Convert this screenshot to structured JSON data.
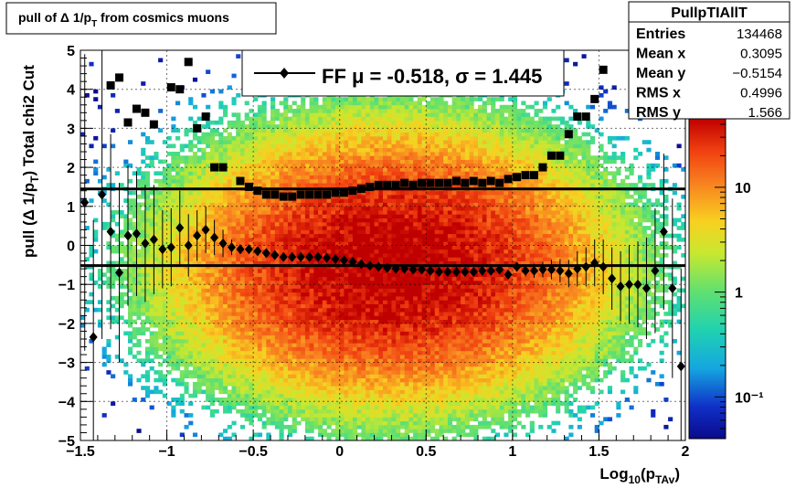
{
  "chart_data": {
    "type": "heatmap",
    "title": "pull of Δ 1/p_T from cosmics muons",
    "title_parts": {
      "main": "pull of Δ 1/p",
      "sub": "T",
      "rest": "  from cosmics muons"
    },
    "xlabel": "Log10(pTAv)",
    "xlabel_parts": {
      "a": "Log",
      "sub1": "10",
      "b": "(p",
      "sub2": "TAv",
      "c": ")"
    },
    "ylabel": "pull (Δ 1/pT)  Total chi2 Cut",
    "ylabel_parts": {
      "a": "pull (Δ 1/p",
      "sub": "T",
      "b": ")  Total chi2 Cut"
    },
    "xlim": [
      -1.5,
      2
    ],
    "ylim": [
      -5,
      5
    ],
    "x_ticks": [
      "−1.5",
      "−1",
      "−0.5",
      "0",
      "0.5",
      "1",
      "1.5",
      "2"
    ],
    "x_tick_values": [
      -1.5,
      -1,
      -0.5,
      0,
      0.5,
      1,
      1.5,
      2
    ],
    "y_ticks": [
      "−5",
      "−4",
      "−3",
      "−2",
      "−1",
      "0",
      "1",
      "2",
      "3",
      "4",
      "5"
    ],
    "y_tick_values": [
      -5,
      -4,
      -3,
      -2,
      -1,
      0,
      1,
      2,
      3,
      4,
      5
    ],
    "grid": true,
    "z_scale": "log",
    "z_ticks": [
      "10",
      "1",
      "10⁻¹"
    ],
    "z_tick_values": [
      10,
      1,
      0.1
    ],
    "z_range": [
      0.04,
      45
    ],
    "density_model": {
      "x_center": 0.3,
      "x_width": 0.55,
      "y_center": -0.5,
      "y_width": 1.5
    },
    "fit_lines": [
      {
        "label": "mean",
        "y": -0.518
      },
      {
        "label": "mean+sigma",
        "y": 1.445
      }
    ],
    "legend": {
      "placement": "top-center",
      "text": "FF μ = -0.518, σ =   1.445"
    },
    "stats": {
      "name": "PullpTIAllT",
      "rows": [
        {
          "key": "Entries",
          "value": "134468"
        },
        {
          "key": "Mean x",
          "value": "0.3095"
        },
        {
          "key": "Mean y",
          "value": "−0.5154"
        },
        {
          "key": "RMS x",
          "value": "0.4996"
        },
        {
          "key": "RMS y",
          "value": "1.566"
        }
      ]
    },
    "series": [
      {
        "marker": "diamond",
        "points": [
          {
            "x": -1.475,
            "y": 1.1,
            "err": 3.8
          },
          {
            "x": -1.425,
            "y": -2.35,
            "err": 3.0
          },
          {
            "x": -1.375,
            "y": 1.3,
            "err": 3.7
          },
          {
            "x": -1.325,
            "y": 0.35,
            "err": 2.5
          },
          {
            "x": -1.275,
            "y": -0.7,
            "err": 2.3
          },
          {
            "x": -1.225,
            "y": 0.25,
            "err": 1.8
          },
          {
            "x": -1.175,
            "y": 0.3,
            "err": 1.6
          },
          {
            "x": -1.125,
            "y": 0.05,
            "err": 1.5
          },
          {
            "x": -1.075,
            "y": 0.15,
            "err": 1.4
          },
          {
            "x": -1.025,
            "y": -0.1,
            "err": 1.0
          },
          {
            "x": -0.975,
            "y": -0.05,
            "err": 1.0
          },
          {
            "x": -0.925,
            "y": 0.45,
            "err": 0.95
          },
          {
            "x": -0.875,
            "y": 0.0,
            "err": 0.8
          },
          {
            "x": -0.825,
            "y": 0.25,
            "err": 0.65
          },
          {
            "x": -0.775,
            "y": 0.4,
            "err": 0.6
          },
          {
            "x": -0.725,
            "y": 0.2,
            "err": 0.45
          },
          {
            "x": -0.675,
            "y": 0.05,
            "err": 0.35
          },
          {
            "x": -0.625,
            "y": -0.05,
            "err": 0.2
          },
          {
            "x": -0.575,
            "y": -0.1,
            "err": 0.12
          },
          {
            "x": -0.525,
            "y": -0.1,
            "err": 0.08
          },
          {
            "x": -0.475,
            "y": -0.15,
            "err": 0.05
          },
          {
            "x": -0.425,
            "y": -0.2,
            "err": 0.04
          },
          {
            "x": -0.375,
            "y": -0.25,
            "err": 0.04
          },
          {
            "x": -0.325,
            "y": -0.3,
            "err": 0.03
          },
          {
            "x": -0.275,
            "y": -0.3,
            "err": 0.03
          },
          {
            "x": -0.225,
            "y": -0.3,
            "err": 0.03
          },
          {
            "x": -0.175,
            "y": -0.3,
            "err": 0.03
          },
          {
            "x": -0.125,
            "y": -0.3,
            "err": 0.03
          },
          {
            "x": -0.075,
            "y": -0.32,
            "err": 0.03
          },
          {
            "x": -0.025,
            "y": -0.35,
            "err": 0.03
          },
          {
            "x": 0.025,
            "y": -0.38,
            "err": 0.03
          },
          {
            "x": 0.075,
            "y": -0.42,
            "err": 0.03
          },
          {
            "x": 0.125,
            "y": -0.48,
            "err": 0.03
          },
          {
            "x": 0.175,
            "y": -0.52,
            "err": 0.03
          },
          {
            "x": 0.225,
            "y": -0.55,
            "err": 0.03
          },
          {
            "x": 0.275,
            "y": -0.58,
            "err": 0.03
          },
          {
            "x": 0.325,
            "y": -0.6,
            "err": 0.03
          },
          {
            "x": 0.375,
            "y": -0.6,
            "err": 0.03
          },
          {
            "x": 0.425,
            "y": -0.62,
            "err": 0.03
          },
          {
            "x": 0.475,
            "y": -0.62,
            "err": 0.03
          },
          {
            "x": 0.525,
            "y": -0.65,
            "err": 0.03
          },
          {
            "x": 0.575,
            "y": -0.68,
            "err": 0.03
          },
          {
            "x": 0.625,
            "y": -0.68,
            "err": 0.03
          },
          {
            "x": 0.675,
            "y": -0.68,
            "err": 0.04
          },
          {
            "x": 0.725,
            "y": -0.68,
            "err": 0.04
          },
          {
            "x": 0.775,
            "y": -0.68,
            "err": 0.05
          },
          {
            "x": 0.825,
            "y": -0.65,
            "err": 0.05
          },
          {
            "x": 0.875,
            "y": -0.65,
            "err": 0.06
          },
          {
            "x": 0.925,
            "y": -0.62,
            "err": 0.08
          },
          {
            "x": 0.975,
            "y": -0.75,
            "err": 0.1
          },
          {
            "x": 1.025,
            "y": -0.55,
            "err": 0.12
          },
          {
            "x": 1.075,
            "y": -0.65,
            "err": 0.15
          },
          {
            "x": 1.125,
            "y": -0.65,
            "err": 0.18
          },
          {
            "x": 1.175,
            "y": -0.62,
            "err": 0.2
          },
          {
            "x": 1.225,
            "y": -0.62,
            "err": 0.25
          },
          {
            "x": 1.275,
            "y": -0.65,
            "err": 0.3
          },
          {
            "x": 1.325,
            "y": -0.72,
            "err": 0.35
          },
          {
            "x": 1.375,
            "y": -0.6,
            "err": 0.45
          },
          {
            "x": 1.425,
            "y": -0.55,
            "err": 0.5
          },
          {
            "x": 1.475,
            "y": -0.45,
            "err": 0.6
          },
          {
            "x": 1.525,
            "y": -0.55,
            "err": 0.7
          },
          {
            "x": 1.575,
            "y": -0.85,
            "err": 0.8
          },
          {
            "x": 1.625,
            "y": -1.05,
            "err": 0.9
          },
          {
            "x": 1.675,
            "y": -1.0,
            "err": 1.0
          },
          {
            "x": 1.725,
            "y": -1.0,
            "err": 1.1
          },
          {
            "x": 1.775,
            "y": -1.1,
            "err": 1.3
          },
          {
            "x": 1.825,
            "y": -0.65,
            "err": 1.6
          },
          {
            "x": 1.875,
            "y": 0.35,
            "err": 2.0
          },
          {
            "x": 1.925,
            "y": -1.1,
            "err": 2.3
          },
          {
            "x": 1.975,
            "y": -3.1,
            "err": 2.5
          }
        ]
      },
      {
        "marker": "square",
        "points": [
          {
            "x": -1.325,
            "y": 4.1
          },
          {
            "x": -1.275,
            "y": 4.3
          },
          {
            "x": -1.225,
            "y": 3.15
          },
          {
            "x": -1.175,
            "y": 3.5
          },
          {
            "x": -1.125,
            "y": 3.4
          },
          {
            "x": -1.075,
            "y": 3.1
          },
          {
            "x": -0.975,
            "y": 4.05
          },
          {
            "x": -0.925,
            "y": 4.0
          },
          {
            "x": -0.875,
            "y": 4.7
          },
          {
            "x": -0.825,
            "y": 3.0
          },
          {
            "x": -0.775,
            "y": 3.3
          },
          {
            "x": -0.725,
            "y": 2.0
          },
          {
            "x": -0.675,
            "y": 2.0
          },
          {
            "x": -0.575,
            "y": 1.65
          },
          {
            "x": -0.525,
            "y": 1.5
          },
          {
            "x": -0.475,
            "y": 1.4
          },
          {
            "x": -0.425,
            "y": 1.3
          },
          {
            "x": -0.375,
            "y": 1.3
          },
          {
            "x": -0.325,
            "y": 1.25
          },
          {
            "x": -0.275,
            "y": 1.25
          },
          {
            "x": -0.225,
            "y": 1.3
          },
          {
            "x": -0.175,
            "y": 1.3
          },
          {
            "x": -0.125,
            "y": 1.3
          },
          {
            "x": -0.075,
            "y": 1.3
          },
          {
            "x": -0.025,
            "y": 1.35
          },
          {
            "x": 0.025,
            "y": 1.35
          },
          {
            "x": 0.075,
            "y": 1.4
          },
          {
            "x": 0.125,
            "y": 1.45
          },
          {
            "x": 0.175,
            "y": 1.5
          },
          {
            "x": 0.225,
            "y": 1.55
          },
          {
            "x": 0.275,
            "y": 1.55
          },
          {
            "x": 0.325,
            "y": 1.55
          },
          {
            "x": 0.375,
            "y": 1.6
          },
          {
            "x": 0.425,
            "y": 1.55
          },
          {
            "x": 0.475,
            "y": 1.6
          },
          {
            "x": 0.525,
            "y": 1.6
          },
          {
            "x": 0.575,
            "y": 1.6
          },
          {
            "x": 0.625,
            "y": 1.6
          },
          {
            "x": 0.675,
            "y": 1.65
          },
          {
            "x": 0.725,
            "y": 1.6
          },
          {
            "x": 0.775,
            "y": 1.65
          },
          {
            "x": 0.825,
            "y": 1.6
          },
          {
            "x": 0.875,
            "y": 1.65
          },
          {
            "x": 0.925,
            "y": 1.6
          },
          {
            "x": 0.975,
            "y": 1.7
          },
          {
            "x": 1.025,
            "y": 1.75
          },
          {
            "x": 1.075,
            "y": 1.8
          },
          {
            "x": 1.125,
            "y": 1.8
          },
          {
            "x": 1.175,
            "y": 2.0
          },
          {
            "x": 1.225,
            "y": 2.3
          },
          {
            "x": 1.275,
            "y": 2.3
          },
          {
            "x": 1.325,
            "y": 2.85
          },
          {
            "x": 1.375,
            "y": 3.3
          },
          {
            "x": 1.425,
            "y": 3.3
          },
          {
            "x": 1.475,
            "y": 3.75
          },
          {
            "x": 1.525,
            "y": 4.5
          }
        ]
      }
    ]
  }
}
